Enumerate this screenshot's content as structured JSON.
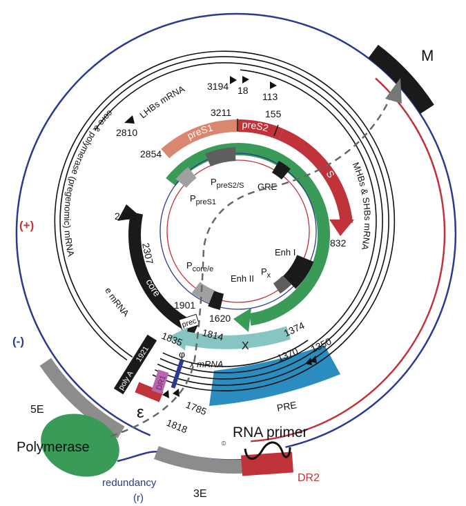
{
  "colors": {
    "plus_strand": "#c1333a",
    "minus_strand": "#2b3990",
    "polymerase": "#3a9a58",
    "preS1": "#d9876f",
    "preS2_S": "#c1333a",
    "core": "#1a1a1a",
    "x_protein": "#86c5c1",
    "pre": "#2b8cbf",
    "epsilon": "#c1333a",
    "dr1": "#b767b0",
    "terminal_protein_domain": "#8c8c8c"
  },
  "strands": {
    "plus": "(+)",
    "minus": "(-)"
  },
  "outer": {
    "M": "M",
    "five_e": "5E",
    "three_e": "3E",
    "polymerase": "Polymerase",
    "redundancy": "redundancy",
    "redundancy_abbr": "(r)",
    "rna_primer": "RNA primer",
    "dr2": "DR2",
    "phi_symbol": "⦶"
  },
  "mrnas": {
    "lhbs": "LHBs mRNA",
    "pregenomic": "core & polymerase (pregenomic) mRNA",
    "e": "e mRNA",
    "mhbs_shbs": "MHBs & SHBs mRNA",
    "x": "x mRNA"
  },
  "orfs": {
    "preS1": "preS1",
    "preS2": "preS2",
    "S": "S",
    "core": "core",
    "prec": "prec",
    "X": "X"
  },
  "elements": {
    "p_preS1_main": "P",
    "p_preS1_sub": "preS1",
    "p_preS2_main": "P",
    "p_preS2_sub": "preS2/S",
    "gre": "GRE",
    "enh1": "Enh I",
    "px_main": "P",
    "px_sub": "x",
    "enh2": "Enh II",
    "pcore_main": "P",
    "pcore_sub": "core/e",
    "polyA": "poly A",
    "polyA_pos": "1921",
    "dr1": "DR1",
    "phi": "φ",
    "epsilon": "ε",
    "pre": "PRE"
  },
  "positions": {
    "p3194": "3194",
    "p18": "18",
    "p113": "113",
    "p2810": "2810",
    "p3211": "3211",
    "p155": "155",
    "p2854": "2854",
    "p832": "832",
    "p2456": "2456",
    "p2307": "2307",
    "p1901": "1901",
    "p1814": "1814",
    "p1620": "1620",
    "p1835": "1835",
    "p1374": "1374",
    "p1370": "1370",
    "p1350": "1350",
    "p1785": "1785",
    "p1818": "1818"
  }
}
